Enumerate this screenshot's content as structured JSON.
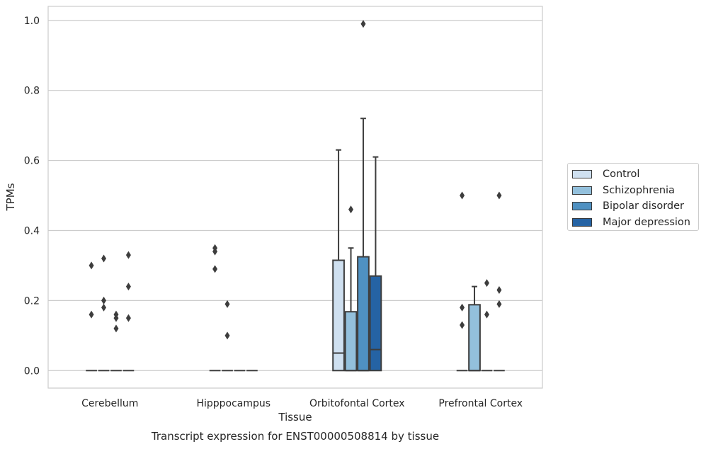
{
  "chart_data": {
    "type": "box",
    "title": "Transcript expression for ENST00000508814 by tissue",
    "xlabel": "Tissue",
    "ylabel": "TPMs",
    "ylim": [
      -0.05,
      1.04
    ],
    "yticks": [
      0.0,
      0.2,
      0.4,
      0.6,
      0.8,
      1.0
    ],
    "ytick_labels": [
      "0.0",
      "0.2",
      "0.4",
      "0.6",
      "0.8",
      "1.0"
    ],
    "grid": "horizontal",
    "legend_position": "right",
    "categories": [
      "Cerebellum",
      "Hipppocampus",
      "Orbitofontal Cortex",
      "Prefrontal Cortex"
    ],
    "series": [
      {
        "name": "Control",
        "color": "#cfe0f0",
        "boxes": [
          {
            "q1": 0,
            "median": 0,
            "q3": 0,
            "whisker_low": 0,
            "whisker_high": 0,
            "outliers": [
              0.3,
              0.16
            ]
          },
          {
            "q1": 0,
            "median": 0,
            "q3": 0,
            "whisker_low": 0,
            "whisker_high": 0,
            "outliers": [
              0.35,
              0.34,
              0.29
            ]
          },
          {
            "q1": 0,
            "median": 0.05,
            "q3": 0.315,
            "whisker_low": 0,
            "whisker_high": 0.63,
            "outliers": []
          },
          {
            "q1": 0,
            "median": 0,
            "q3": 0,
            "whisker_low": 0,
            "whisker_high": 0,
            "outliers": [
              0.5,
              0.18,
              0.13
            ]
          }
        ]
      },
      {
        "name": "Schizophrenia",
        "color": "#93c0dc",
        "boxes": [
          {
            "q1": 0,
            "median": 0,
            "q3": 0,
            "whisker_low": 0,
            "whisker_high": 0,
            "outliers": [
              0.32,
              0.2,
              0.18
            ]
          },
          {
            "q1": 0,
            "median": 0,
            "q3": 0,
            "whisker_low": 0,
            "whisker_high": 0,
            "outliers": [
              0.19,
              0.1
            ]
          },
          {
            "q1": 0,
            "median": 0,
            "q3": 0.168,
            "whisker_low": 0,
            "whisker_high": 0.35,
            "outliers": [
              0.46
            ]
          },
          {
            "q1": 0,
            "median": 0,
            "q3": 0.188,
            "whisker_low": 0,
            "whisker_high": 0.24,
            "outliers": []
          }
        ]
      },
      {
        "name": "Bipolar disorder",
        "color": "#4f91c2",
        "boxes": [
          {
            "q1": 0,
            "median": 0,
            "q3": 0,
            "whisker_low": 0,
            "whisker_high": 0,
            "outliers": [
              0.16,
              0.15,
              0.12
            ]
          },
          {
            "q1": 0,
            "median": 0,
            "q3": 0,
            "whisker_low": 0,
            "whisker_high": 0,
            "outliers": []
          },
          {
            "q1": 0,
            "median": 0,
            "q3": 0.325,
            "whisker_low": 0,
            "whisker_high": 0.72,
            "outliers": [
              0.99
            ]
          },
          {
            "q1": 0,
            "median": 0,
            "q3": 0,
            "whisker_low": 0,
            "whisker_high": 0,
            "outliers": [
              0.25,
              0.16
            ]
          }
        ]
      },
      {
        "name": "Major depression",
        "color": "#2563a4",
        "boxes": [
          {
            "q1": 0,
            "median": 0,
            "q3": 0,
            "whisker_low": 0,
            "whisker_high": 0,
            "outliers": [
              0.33,
              0.24,
              0.15
            ]
          },
          {
            "q1": 0,
            "median": 0,
            "q3": 0,
            "whisker_low": 0,
            "whisker_high": 0,
            "outliers": []
          },
          {
            "q1": 0,
            "median": 0.06,
            "q3": 0.27,
            "whisker_low": 0,
            "whisker_high": 0.61,
            "outliers": []
          },
          {
            "q1": 0,
            "median": 0,
            "q3": 0,
            "whisker_low": 0,
            "whisker_high": 0,
            "outliers": [
              0.5,
              0.23,
              0.19
            ]
          }
        ]
      }
    ]
  }
}
